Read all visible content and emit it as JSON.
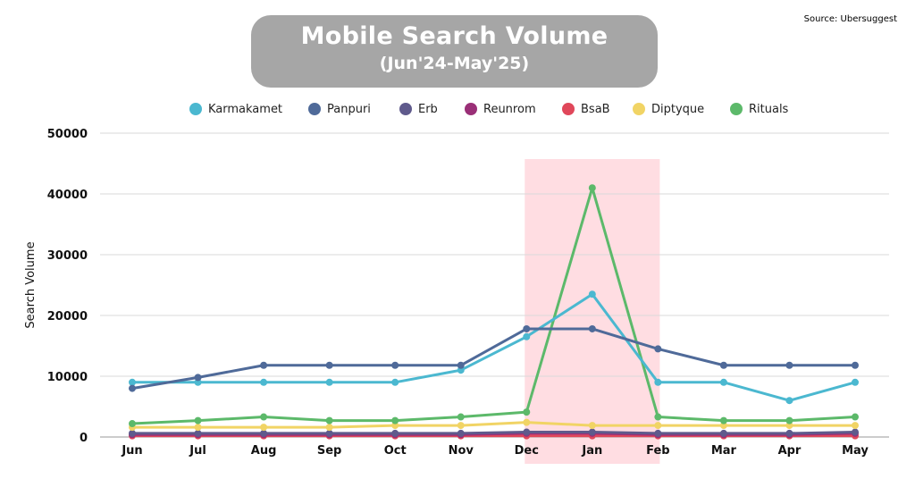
{
  "source": "Source: Ubersuggest",
  "chart_data": {
    "type": "line",
    "title": "Mobile Search Volume",
    "subtitle": "(Jun'24-May'25)",
    "ylabel": "Search Volume",
    "xlabel": "",
    "ylim": [
      0,
      50000
    ],
    "yticks": [
      0,
      10000,
      20000,
      30000,
      40000,
      50000
    ],
    "grid": true,
    "legend_placement": "top",
    "categories": [
      "Jun",
      "Jul",
      "Aug",
      "Sep",
      "Oct",
      "Nov",
      "Dec",
      "Jan",
      "Feb",
      "Mar",
      "Apr",
      "May"
    ],
    "highlight": {
      "from": "Dec",
      "to": "Feb",
      "color": "#ffdde2"
    },
    "series": [
      {
        "name": "Karmakamet",
        "color": "#4bb8d0",
        "values": [
          9000,
          9000,
          9000,
          9000,
          9000,
          11000,
          16500,
          23500,
          9000,
          9000,
          6000,
          9000
        ]
      },
      {
        "name": "Panpuri",
        "color": "#4f6a99",
        "values": [
          8000,
          9800,
          11800,
          11800,
          11800,
          11800,
          17800,
          17800,
          14500,
          11800,
          11800,
          11800
        ]
      },
      {
        "name": "Erb",
        "color": "#5f5a8c",
        "values": [
          600,
          600,
          600,
          600,
          600,
          600,
          800,
          800,
          600,
          600,
          600,
          800
        ]
      },
      {
        "name": "Reunrom",
        "color": "#9a2f77",
        "values": [
          400,
          400,
          400,
          400,
          400,
          400,
          600,
          600,
          400,
          400,
          400,
          600
        ]
      },
      {
        "name": "BsaB",
        "color": "#e0475a",
        "values": [
          200,
          200,
          200,
          200,
          200,
          200,
          200,
          200,
          200,
          200,
          200,
          200
        ]
      },
      {
        "name": "Diptyque",
        "color": "#f1d465",
        "values": [
          1600,
          1600,
          1600,
          1600,
          1900,
          1900,
          2400,
          1900,
          1900,
          1900,
          1900,
          1900
        ]
      },
      {
        "name": "Rituals",
        "color": "#5cb96a",
        "values": [
          2200,
          2700,
          3300,
          2700,
          2700,
          3300,
          4100,
          41000,
          3300,
          2700,
          2700,
          3300
        ]
      }
    ]
  }
}
